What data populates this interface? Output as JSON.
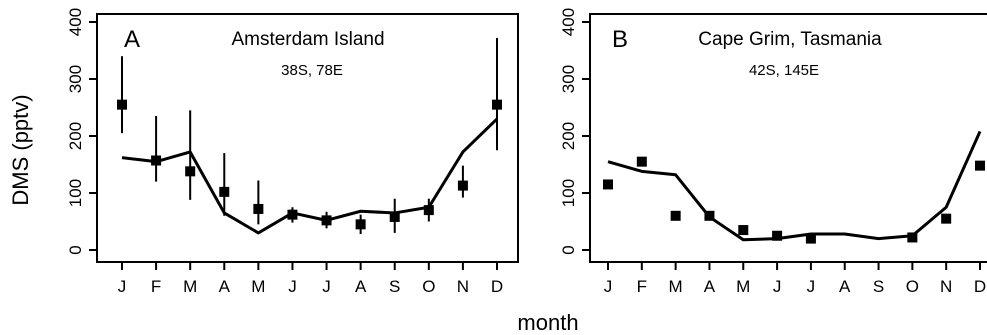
{
  "figure": {
    "ylabel": "DMS (pptv)",
    "xlabel": "month"
  },
  "chart_data": [
    {
      "type": "line",
      "panel": "A",
      "title": "Amsterdam Island",
      "subtitle": "38S, 78E",
      "categories": [
        "J",
        "F",
        "M",
        "A",
        "M",
        "J",
        "J",
        "A",
        "S",
        "O",
        "N",
        "D"
      ],
      "ylim": [
        0,
        400
      ],
      "yticks": [
        0,
        100,
        200,
        300,
        400
      ],
      "series": [
        {
          "kind": "line",
          "values": [
            162,
            155,
            172,
            65,
            30,
            65,
            52,
            68,
            65,
            75,
            172,
            230
          ]
        },
        {
          "kind": "points",
          "values": [
            255,
            157,
            138,
            102,
            72,
            62,
            52,
            45,
            58,
            70,
            113,
            255
          ],
          "error_low": [
            205,
            120,
            88,
            60,
            45,
            48,
            38,
            28,
            30,
            50,
            92,
            175
          ],
          "error_high": [
            340,
            235,
            245,
            170,
            122,
            75,
            67,
            62,
            90,
            90,
            148,
            372
          ]
        }
      ]
    },
    {
      "type": "line",
      "panel": "B",
      "title": "Cape Grim, Tasmania",
      "subtitle": "42S, 145E",
      "categories": [
        "J",
        "F",
        "M",
        "A",
        "M",
        "J",
        "J",
        "A",
        "S",
        "O",
        "N",
        "D"
      ],
      "ylim": [
        0,
        400
      ],
      "yticks": [
        0,
        100,
        200,
        300,
        400
      ],
      "series": [
        {
          "kind": "line",
          "values": [
            155,
            138,
            132,
            58,
            18,
            20,
            28,
            28,
            20,
            25,
            75,
            208
          ]
        },
        {
          "kind": "points",
          "values": [
            115,
            155,
            60,
            60,
            35,
            25,
            20,
            null,
            null,
            22,
            55,
            148
          ]
        }
      ]
    }
  ]
}
